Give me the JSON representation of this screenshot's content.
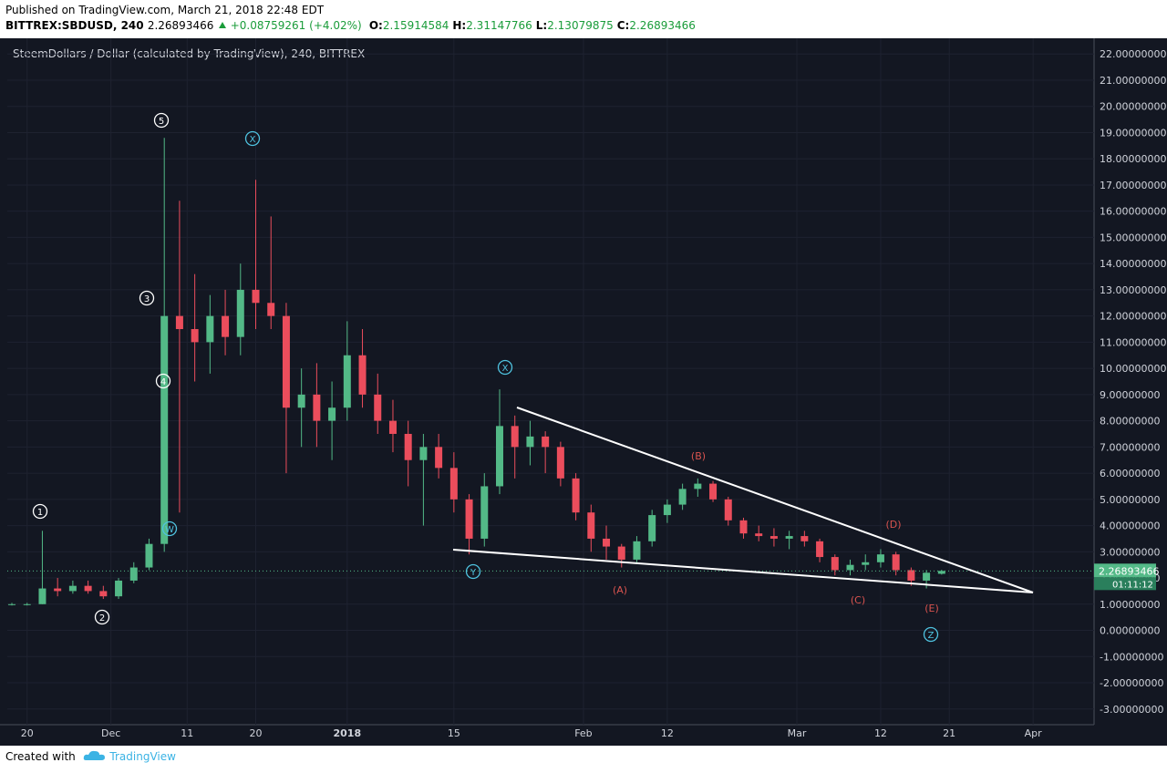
{
  "header": {
    "published": "Published on TradingView.com, March 21, 2018 22:48 EDT",
    "symbol": "BITTREX:SBDUSD, 240",
    "last": 2.26893466,
    "change": "+0.08759261 (+4.02%)",
    "ohlc": [
      {
        "label": "O:",
        "value": 2.15914584
      },
      {
        "label": "H:",
        "value": 2.31147766
      },
      {
        "label": "L:",
        "value": 2.13079875
      },
      {
        "label": "C:",
        "value": 2.26893466
      }
    ]
  },
  "chart_data": {
    "type": "candlestick",
    "title": "SteemDollars / Dollar (calculated by TradingView), 240, BITTREX",
    "up_color": "#53b987",
    "down_color": "#eb4d5c",
    "x": [
      -2,
      0,
      2,
      4,
      6,
      8,
      10,
      12,
      14,
      16,
      18,
      20,
      22,
      24,
      26,
      28,
      30,
      32,
      34,
      36,
      38,
      40,
      42,
      44,
      46,
      48,
      50,
      52,
      54,
      56,
      58,
      60,
      62,
      64,
      66,
      68,
      70,
      72,
      74,
      76,
      78,
      80,
      82,
      84,
      86,
      88,
      90,
      92,
      94,
      96,
      98,
      100,
      102,
      104,
      106,
      108,
      110,
      112,
      114,
      116,
      118,
      120
    ],
    "open": [
      1.0,
      1.0,
      1.0,
      1.6,
      1.5,
      1.7,
      1.5,
      1.3,
      1.9,
      2.4,
      3.3,
      12.0,
      11.5,
      11.0,
      12.0,
      11.2,
      13.0,
      12.5,
      12.0,
      8.5,
      9.0,
      8.0,
      8.5,
      10.5,
      9.0,
      8.0,
      7.5,
      6.5,
      7.0,
      6.2,
      5.0,
      3.5,
      5.5,
      7.8,
      7.0,
      7.4,
      7.0,
      5.8,
      4.5,
      3.5,
      3.2,
      2.7,
      3.4,
      4.4,
      4.8,
      5.4,
      5.6,
      5.0,
      4.2,
      3.7,
      3.6,
      3.5,
      3.6,
      3.4,
      2.8,
      2.3,
      2.5,
      2.6,
      2.9,
      2.3,
      1.9,
      2.16
    ],
    "high": [
      1.05,
      1.05,
      3.8,
      2.0,
      1.9,
      1.9,
      1.7,
      2.0,
      2.6,
      3.5,
      18.8,
      16.4,
      13.6,
      12.8,
      13.0,
      14.0,
      17.2,
      15.8,
      12.5,
      10.0,
      10.2,
      9.5,
      11.8,
      11.5,
      9.8,
      8.8,
      8.0,
      7.5,
      7.5,
      6.8,
      5.2,
      6.0,
      9.2,
      8.2,
      8.0,
      7.6,
      7.2,
      6.0,
      4.8,
      4.0,
      3.3,
      3.6,
      4.6,
      5.0,
      5.6,
      5.8,
      5.7,
      5.1,
      4.3,
      4.0,
      3.9,
      3.8,
      3.8,
      3.5,
      2.9,
      2.7,
      2.9,
      3.1,
      3.0,
      2.4,
      2.3,
      2.31
    ],
    "low": [
      0.95,
      0.95,
      1.0,
      1.3,
      1.4,
      1.4,
      1.2,
      1.2,
      1.8,
      2.3,
      3.0,
      4.5,
      9.5,
      9.8,
      10.5,
      10.5,
      11.5,
      11.5,
      6.0,
      7.0,
      7.0,
      6.5,
      8.0,
      8.5,
      7.5,
      6.8,
      5.5,
      4.0,
      5.8,
      4.5,
      2.9,
      3.2,
      5.2,
      5.8,
      6.3,
      6.0,
      5.5,
      4.2,
      3.0,
      2.7,
      2.4,
      2.6,
      3.2,
      4.1,
      4.6,
      5.1,
      4.9,
      4.0,
      3.5,
      3.4,
      3.2,
      3.1,
      3.2,
      2.6,
      2.1,
      2.1,
      2.3,
      2.4,
      2.1,
      1.7,
      1.6,
      2.13
    ],
    "close": [
      1.0,
      1.0,
      1.6,
      1.5,
      1.7,
      1.5,
      1.3,
      1.9,
      2.4,
      3.3,
      12.0,
      11.5,
      11.0,
      12.0,
      11.2,
      13.0,
      12.5,
      12.0,
      8.5,
      9.0,
      8.0,
      8.5,
      10.5,
      9.0,
      8.0,
      7.5,
      6.5,
      7.0,
      6.2,
      5.0,
      3.5,
      5.5,
      7.8,
      7.0,
      7.4,
      7.0,
      5.8,
      4.5,
      3.5,
      3.2,
      2.7,
      3.4,
      4.4,
      4.8,
      5.4,
      5.6,
      5.0,
      4.2,
      3.7,
      3.6,
      3.5,
      3.6,
      3.4,
      2.8,
      2.3,
      2.5,
      2.6,
      2.9,
      2.3,
      1.9,
      2.2,
      2.27
    ],
    "xlim": [
      -2.6,
      140
    ],
    "xticks": [
      {
        "value": 0,
        "label": "20"
      },
      {
        "value": 11,
        "label": "Dec"
      },
      {
        "value": 21,
        "label": "11"
      },
      {
        "value": 30,
        "label": "20"
      },
      {
        "value": 42,
        "label": "2018"
      },
      {
        "value": 56,
        "label": "15"
      },
      {
        "value": 73,
        "label": "Feb"
      },
      {
        "value": 84,
        "label": "12"
      },
      {
        "value": 101,
        "label": "Mar"
      },
      {
        "value": 112,
        "label": "12"
      },
      {
        "value": 121,
        "label": "21"
      },
      {
        "value": 132,
        "label": "Apr"
      }
    ],
    "ylim": [
      -3.6,
      22.6
    ],
    "yticks": [
      {
        "value": 22,
        "label": "22.00000000"
      },
      {
        "value": 21,
        "label": "21.00000000"
      },
      {
        "value": 20,
        "label": "20.00000000"
      },
      {
        "value": 19,
        "label": "19.00000000"
      },
      {
        "value": 18,
        "label": "18.00000000"
      },
      {
        "value": 17,
        "label": "17.00000000"
      },
      {
        "value": 16,
        "label": "16.00000000"
      },
      {
        "value": 15,
        "label": "15.00000000"
      },
      {
        "value": 14,
        "label": "14.00000000"
      },
      {
        "value": 13,
        "label": "13.00000000"
      },
      {
        "value": 12,
        "label": "12.00000000"
      },
      {
        "value": 11,
        "label": "11.00000000"
      },
      {
        "value": 10,
        "label": "10.00000000"
      },
      {
        "value": 9,
        "label": "9.00000000"
      },
      {
        "value": 8,
        "label": "8.00000000"
      },
      {
        "value": 7,
        "label": "7.00000000"
      },
      {
        "value": 6,
        "label": "6.00000000"
      },
      {
        "value": 5,
        "label": "5.00000000"
      },
      {
        "value": 4,
        "label": "4.00000000"
      },
      {
        "value": 3,
        "label": "3.00000000"
      },
      {
        "value": 2,
        "label": "2.00000000"
      },
      {
        "value": 1,
        "label": "1.00000000"
      },
      {
        "value": 0,
        "label": "0.00000000"
      },
      {
        "value": -1,
        "label": "-1.00000000"
      },
      {
        "value": -2,
        "label": "-2.00000000"
      },
      {
        "value": -3,
        "label": "-3.00000000"
      }
    ],
    "grid": true,
    "last_price": {
      "value": 2.26893466,
      "label": "2.26893466"
    },
    "countdown": "01:11:12",
    "annotations": [
      "1",
      "2",
      "3",
      "4",
      "5",
      "W",
      "X",
      "Y",
      "X",
      "Z",
      "(A)",
      "(B)",
      "(C)",
      "(D)",
      "(E)"
    ]
  },
  "footer": {
    "created": "Created with",
    "brand": "TradingView"
  }
}
